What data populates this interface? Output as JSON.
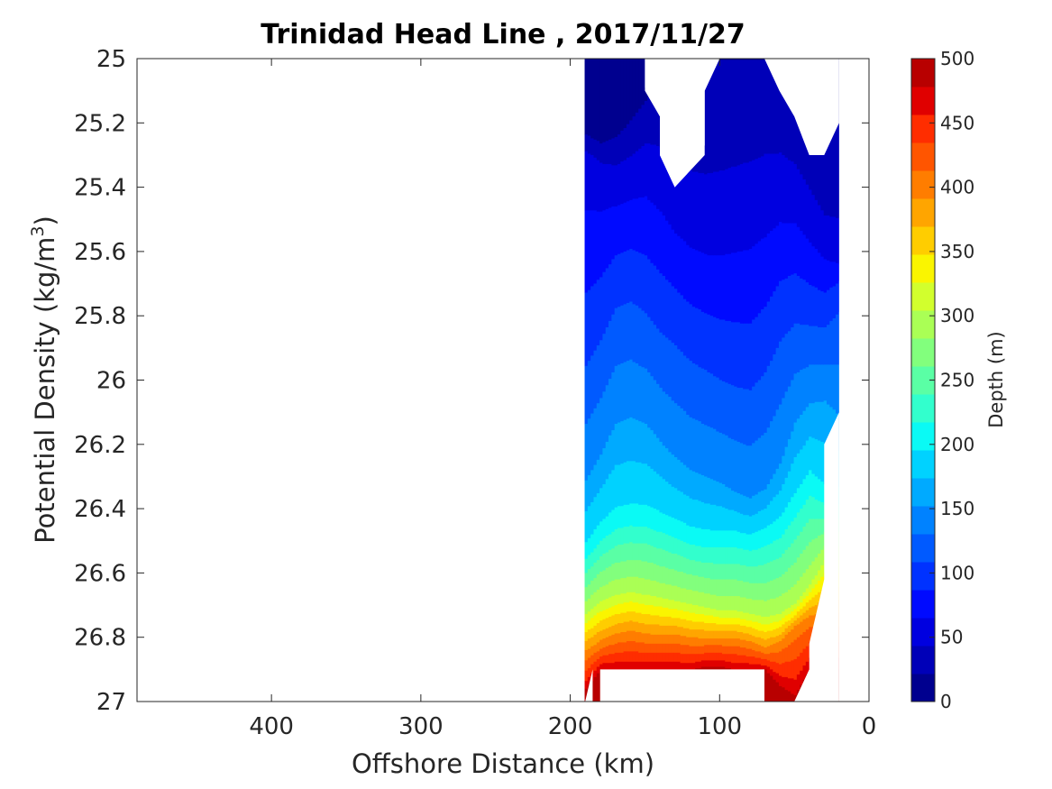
{
  "chart_data": {
    "type": "contour",
    "title": "Trinidad Head Line , 2017/11/27",
    "xlabel": "Offshore Distance (km)",
    "ylabel_main": "Potential Density (kg/m",
    "ylabel_sup": "3",
    "ylabel_close": ")",
    "xlim": [
      490,
      0
    ],
    "ylim": [
      25,
      27
    ],
    "x_ticks": [
      400,
      300,
      200,
      100,
      0
    ],
    "x_tick_labels": [
      "400",
      "300",
      "200",
      "100",
      "0"
    ],
    "y_ticks": [
      25,
      25.2,
      25.4,
      25.6,
      25.8,
      26,
      26.2,
      26.4,
      26.6,
      26.8,
      27
    ],
    "y_tick_labels": [
      "25",
      "25.2",
      "25.4",
      "25.6",
      "25.8",
      "26",
      "26.2",
      "26.4",
      "26.6",
      "26.8",
      "27"
    ],
    "colorbar": {
      "label": "Depth (m)",
      "range": [
        0,
        500
      ],
      "levels": [
        0,
        25,
        50,
        75,
        100,
        125,
        150,
        175,
        200,
        225,
        250,
        275,
        300,
        325,
        350,
        375,
        400,
        425,
        450,
        475,
        500
      ],
      "tick_values": [
        0,
        50,
        100,
        150,
        200,
        250,
        300,
        350,
        400,
        450,
        500
      ],
      "tick_labels": [
        "0",
        "50",
        "100",
        "150",
        "200",
        "250",
        "300",
        "350",
        "400",
        "450",
        "500"
      ],
      "colors": [
        "#00008f",
        "#0000b8",
        "#0000e0",
        "#000aff",
        "#0032ff",
        "#005aff",
        "#0082ff",
        "#00aaff",
        "#00d2ff",
        "#0afaf5",
        "#32ffcd",
        "#5affa5",
        "#82ff7d",
        "#aaff55",
        "#d2ff2d",
        "#faf500",
        "#ffcd00",
        "#ffa500",
        "#ff7d00",
        "#ff5500",
        "#ff2d00",
        "#e00000",
        "#b80000"
      ]
    },
    "contour_isolines": [
      {
        "depth": 25,
        "x": [
          190,
          180,
          170,
          160,
          150,
          140,
          130,
          120,
          110,
          100,
          90,
          80,
          70,
          60,
          50,
          40,
          30,
          20
        ],
        "y": [
          25.27,
          25.3,
          25.28,
          25.22,
          25.15,
          25.08,
          25.05,
          25.03,
          25.01,
          25.0,
          25.0,
          25.0,
          25.0,
          25.04,
          25.12,
          25.2,
          25.3,
          25.2
        ]
      },
      {
        "depth": 50,
        "x": [
          190,
          180,
          170,
          160,
          150,
          140,
          130,
          120,
          110,
          100,
          90,
          80,
          70,
          60,
          50,
          40,
          30,
          20
        ],
        "y": [
          25.29,
          25.33,
          25.35,
          25.33,
          25.3,
          25.34,
          25.42,
          25.46,
          25.48,
          25.47,
          25.45,
          25.43,
          25.4,
          25.38,
          25.4,
          25.48,
          25.55,
          25.6
        ]
      },
      {
        "depth": 100,
        "x": [
          190,
          180,
          170,
          160,
          150,
          140,
          130,
          120,
          110,
          100,
          90,
          80,
          70,
          60,
          50,
          40,
          30,
          20
        ],
        "y": [
          25.88,
          25.8,
          25.7,
          25.68,
          25.72,
          25.78,
          25.82,
          25.87,
          25.9,
          25.93,
          25.95,
          25.96,
          25.9,
          25.8,
          25.76,
          25.78,
          25.79,
          25.72
        ]
      },
      {
        "depth": 150,
        "x": [
          190,
          180,
          170,
          160,
          150,
          140,
          130,
          120,
          110,
          100,
          90,
          80,
          70,
          60,
          50,
          40,
          30,
          20
        ],
        "y": [
          26.3,
          26.22,
          26.12,
          26.1,
          26.12,
          26.18,
          26.23,
          26.27,
          26.29,
          26.31,
          26.34,
          26.36,
          26.33,
          26.25,
          26.12,
          26.06,
          26.05,
          26.1
        ]
      },
      {
        "depth": 200,
        "x": [
          190,
          180,
          170,
          160,
          150,
          140,
          130,
          120,
          110,
          100,
          90,
          80,
          70,
          60,
          50,
          40,
          30
        ],
        "y": [
          26.52,
          26.46,
          26.42,
          26.41,
          26.41,
          26.43,
          26.45,
          26.47,
          26.48,
          26.48,
          26.48,
          26.49,
          26.47,
          26.44,
          26.37,
          26.3,
          26.35
        ]
      },
      {
        "depth": 300,
        "x": [
          190,
          180,
          170,
          160,
          150,
          140,
          130,
          120,
          110,
          100,
          90,
          80,
          70,
          60,
          50,
          40,
          30
        ],
        "y": [
          26.72,
          26.68,
          26.66,
          26.65,
          26.66,
          26.67,
          26.68,
          26.69,
          26.7,
          26.71,
          26.71,
          26.72,
          26.73,
          26.72,
          26.69,
          26.63,
          26.55
        ]
      },
      {
        "depth": 400,
        "x": [
          190,
          180,
          170,
          160,
          150,
          140,
          130,
          120,
          110,
          100,
          90,
          80,
          70,
          60,
          50,
          40
        ],
        "y": [
          26.85,
          26.82,
          26.8,
          26.79,
          26.8,
          26.8,
          26.8,
          26.81,
          26.81,
          26.81,
          26.81,
          26.82,
          26.84,
          26.82,
          26.77,
          26.74
        ]
      },
      {
        "depth": 475,
        "x": [
          190,
          180,
          170,
          160,
          150,
          140,
          130,
          120,
          110,
          100,
          90,
          80,
          70,
          60,
          50,
          40
        ],
        "y": [
          26.96,
          26.9,
          26.9,
          26.9,
          26.9,
          26.9,
          26.9,
          26.9,
          26.89,
          26.89,
          26.9,
          26.9,
          26.9,
          26.95,
          26.98,
          26.9
        ]
      }
    ],
    "data_extent_km": [
      190,
      20
    ],
    "grid": false
  }
}
